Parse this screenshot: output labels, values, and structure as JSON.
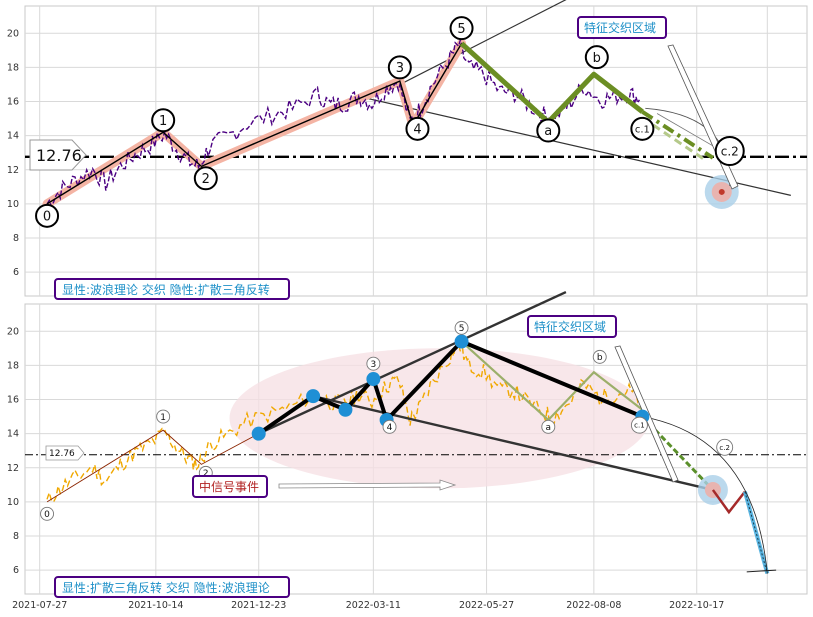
{
  "chart_data": [
    {
      "type": "line",
      "panel": "top",
      "ylim": [
        4.6,
        21.6
      ],
      "yticks": [
        6,
        8,
        10,
        12,
        14,
        16,
        18,
        20
      ],
      "xlim": [
        "2021-07-17",
        "2022-12-31"
      ],
      "grid": true,
      "price_color": "#4b0082",
      "price_line_style": "dashed",
      "price_points": [
        [
          "2021-08-01",
          10.0
        ],
        [
          "2021-08-10",
          10.8
        ],
        [
          "2021-08-20",
          11.4
        ],
        [
          "2021-09-01",
          12.0
        ],
        [
          "2021-09-10",
          11.2
        ],
        [
          "2021-09-20",
          12.2
        ],
        [
          "2021-09-30",
          12.9
        ],
        [
          "2021-10-10",
          13.4
        ],
        [
          "2021-10-20",
          14.1
        ],
        [
          "2021-10-28",
          13.2
        ],
        [
          "2021-11-05",
          12.5
        ],
        [
          "2021-11-12",
          12.2
        ],
        [
          "2021-11-20",
          13.4
        ],
        [
          "2021-12-01",
          13.9
        ],
        [
          "2021-12-15",
          14.7
        ],
        [
          "2022-01-01",
          15.2
        ],
        [
          "2022-01-15",
          15.6
        ],
        [
          "2022-02-01",
          16.4
        ],
        [
          "2022-02-10",
          15.8
        ],
        [
          "2022-02-20",
          15.9
        ],
        [
          "2022-03-01",
          16.3
        ],
        [
          "2022-03-10",
          15.9
        ],
        [
          "2022-03-20",
          16.8
        ],
        [
          "2022-03-28",
          17.2
        ],
        [
          "2022-04-05",
          14.8
        ],
        [
          "2022-04-12",
          15.6
        ],
        [
          "2022-04-20",
          17.0
        ],
        [
          "2022-05-01",
          18.4
        ],
        [
          "2022-05-08",
          19.3
        ],
        [
          "2022-05-15",
          18.0
        ],
        [
          "2022-05-25",
          17.6
        ],
        [
          "2022-06-05",
          16.6
        ],
        [
          "2022-06-15",
          16.5
        ],
        [
          "2022-06-25",
          15.8
        ],
        [
          "2022-07-05",
          15.2
        ],
        [
          "2022-07-12",
          15.0
        ],
        [
          "2022-07-22",
          15.8
        ],
        [
          "2022-08-01",
          16.9
        ],
        [
          "2022-08-12",
          16.1
        ],
        [
          "2022-08-22",
          16.3
        ],
        [
          "2022-09-01",
          16.5
        ],
        [
          "2022-09-08",
          16.1
        ]
      ],
      "wave_points": [
        [
          "0",
          "2021-08-01",
          10.0
        ],
        [
          "1",
          "2021-10-19",
          14.2
        ],
        [
          "2",
          "2021-11-14",
          12.2
        ],
        [
          "3",
          "2022-03-29",
          17.2
        ],
        [
          "4",
          "2022-04-07",
          14.6
        ],
        [
          "5",
          "2022-05-10",
          19.4
        ],
        [
          "a",
          "2022-07-08",
          14.8
        ],
        [
          "b",
          "2022-08-08",
          17.6
        ],
        [
          "c.1",
          "2022-09-10",
          15.4
        ],
        [
          "c.2",
          "2022-10-28",
          12.7
        ]
      ],
      "wave_labels": [
        {
          "text": "0",
          "date": "2021-08-01",
          "y": 9.3
        },
        {
          "text": "1",
          "date": "2021-10-19",
          "y": 14.9
        },
        {
          "text": "2",
          "date": "2021-11-17",
          "y": 11.5
        },
        {
          "text": "3",
          "date": "2022-03-29",
          "y": 18.0
        },
        {
          "text": "4",
          "date": "2022-04-10",
          "y": 14.4
        },
        {
          "text": "5",
          "date": "2022-05-10",
          "y": 20.3
        },
        {
          "text": "a",
          "date": "2022-07-08",
          "y": 14.3
        },
        {
          "text": "b",
          "date": "2022-08-10",
          "y": 18.6
        },
        {
          "text": "c.1",
          "date": "2022-09-10",
          "y": 14.4
        },
        {
          "text": "c.2",
          "date": "2022-11-03",
          "y": 13.1
        }
      ],
      "hline": {
        "value": 12.76,
        "label": "12.76"
      },
      "target_point": {
        "date": "2022-11-03",
        "y": 10.7
      },
      "annotation_box": "特征交织区域",
      "caption": "显性:波浪理论 交织 隐性:扩散三角反转",
      "colors": {
        "price": "#4b0082",
        "wave": "#000000",
        "wave_band": "#f4b4a4",
        "correction": "#6b8e23",
        "label_box_border": "#4b0082",
        "label_text": "#1e90c8"
      }
    },
    {
      "type": "line",
      "panel": "bottom",
      "ylim": [
        4.6,
        21.6
      ],
      "yticks": [
        6,
        8,
        10,
        12,
        14,
        16,
        18,
        20
      ],
      "xlim": [
        "2021-07-17",
        "2022-12-31"
      ],
      "xticks": [
        "2021-07-27",
        "2021-10-14",
        "2021-12-23",
        "2022-03-11",
        "2022-05-27",
        "2022-08-08",
        "2022-10-17"
      ],
      "grid": true,
      "price_color": "#f0a800",
      "price_line_style": "dashed",
      "triangle_nodes": [
        [
          "2021-12-23",
          14.0
        ],
        [
          "2022-01-29",
          16.2
        ],
        [
          "2022-02-20",
          15.4
        ],
        [
          "2022-03-11",
          17.2
        ],
        [
          "2022-03-20",
          14.8
        ],
        [
          "2022-05-10",
          19.4
        ],
        [
          "2022-09-10",
          15.0
        ],
        [
          "2022-10-28",
          10.7
        ]
      ],
      "small_labels": [
        {
          "text": "0",
          "date": "2021-08-01",
          "y": 9.3
        },
        {
          "text": "1",
          "date": "2021-10-19",
          "y": 15.0
        },
        {
          "text": "2",
          "date": "2021-11-17",
          "y": 11.7
        },
        {
          "text": "3",
          "date": "2022-03-11",
          "y": 18.1
        },
        {
          "text": "4",
          "date": "2022-03-22",
          "y": 14.4
        },
        {
          "text": "5",
          "date": "2022-05-10",
          "y": 20.2
        },
        {
          "text": "a",
          "date": "2022-07-08",
          "y": 14.4
        },
        {
          "text": "b",
          "date": "2022-08-12",
          "y": 18.5
        },
        {
          "text": "c.1",
          "date": "2022-09-08",
          "y": 14.5
        },
        {
          "text": "c.2",
          "date": "2022-11-05",
          "y": 13.2
        }
      ],
      "hline": {
        "value": 12.76,
        "label": "12.76"
      },
      "annotation_box": "特征交织区域",
      "mid_event": "中信号事件",
      "caption": "显性:扩散三角反转 交织 隐性:波浪理论",
      "colors": {
        "price": "#f0a800",
        "triangle": "#000000",
        "node": "#1e8fd5",
        "band": "#f5dfe3",
        "projection": "#5ab4e0",
        "reverse": "#a52a2a",
        "label_box_border": "#4b0082",
        "label_text": "#1e90c8",
        "event_text": "#b22222"
      }
    }
  ]
}
